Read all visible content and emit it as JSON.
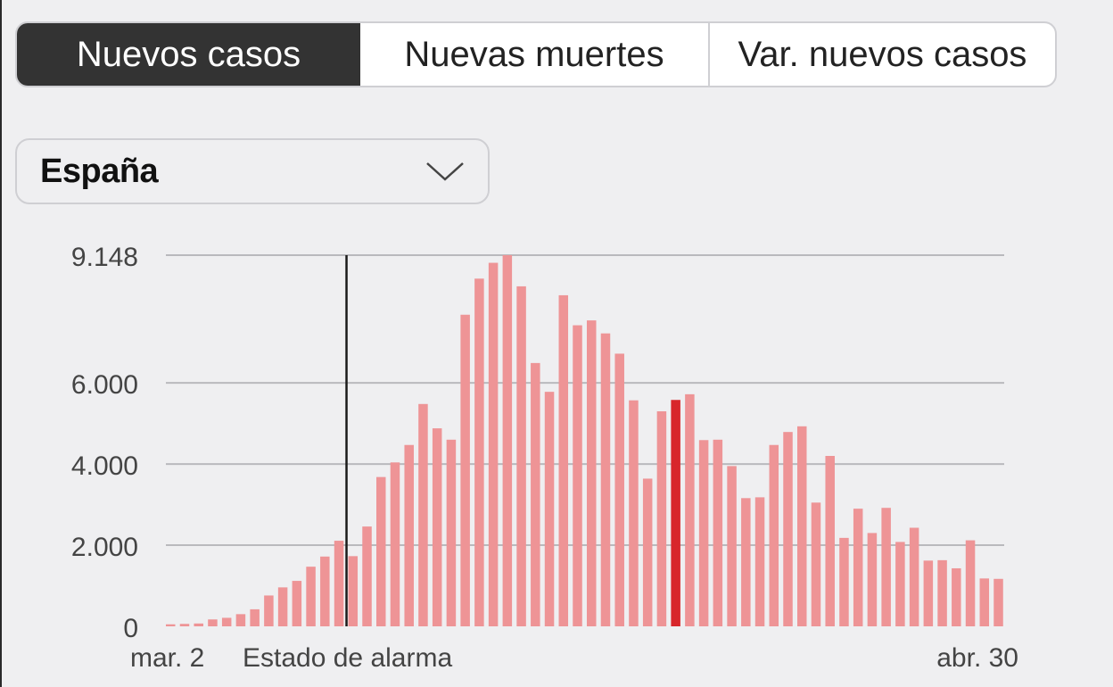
{
  "tabs": [
    {
      "label": "Nuevos casos",
      "active": true
    },
    {
      "label": "Nuevas muertes",
      "active": false
    },
    {
      "label": "Var. nuevos casos",
      "active": false
    }
  ],
  "region_select": {
    "value": "España",
    "icon": "chevron-down-icon"
  },
  "chart_data": {
    "type": "bar",
    "x_start_label": "mar. 2",
    "x_end_label": "abr. 30",
    "annotation": {
      "label": "Estado de alarma",
      "after_index": 13
    },
    "y_ticks": [
      {
        "value": 0,
        "label": "0"
      },
      {
        "value": 2000,
        "label": "2.000"
      },
      {
        "value": 4000,
        "label": "4.000"
      },
      {
        "value": 6000,
        "label": "6.000"
      },
      {
        "value": 9148,
        "label": "9.148"
      }
    ],
    "ylim": [
      0,
      9148
    ],
    "highlight_index": 36,
    "values": [
      50,
      60,
      70,
      170,
      210,
      300,
      420,
      760,
      960,
      1120,
      1470,
      1720,
      2110,
      1730,
      2460,
      3680,
      4040,
      4470,
      5480,
      4880,
      4600,
      7680,
      8570,
      8960,
      9148,
      8380,
      6490,
      5780,
      8160,
      7420,
      7540,
      7220,
      6720,
      5570,
      3640,
      5300,
      5580,
      5720,
      4590,
      4600,
      3950,
      3160,
      3180,
      4470,
      4790,
      4930,
      3050,
      4200,
      2180,
      2900,
      2300,
      2920,
      2080,
      2430,
      1620,
      1630,
      1430,
      2120,
      1180,
      1170
    ],
    "colors": {
      "bar": "#ee9496",
      "highlight": "#d8262b",
      "grid": "#b9b9bd",
      "marker": "#1a1a1a",
      "text": "#444444"
    }
  }
}
